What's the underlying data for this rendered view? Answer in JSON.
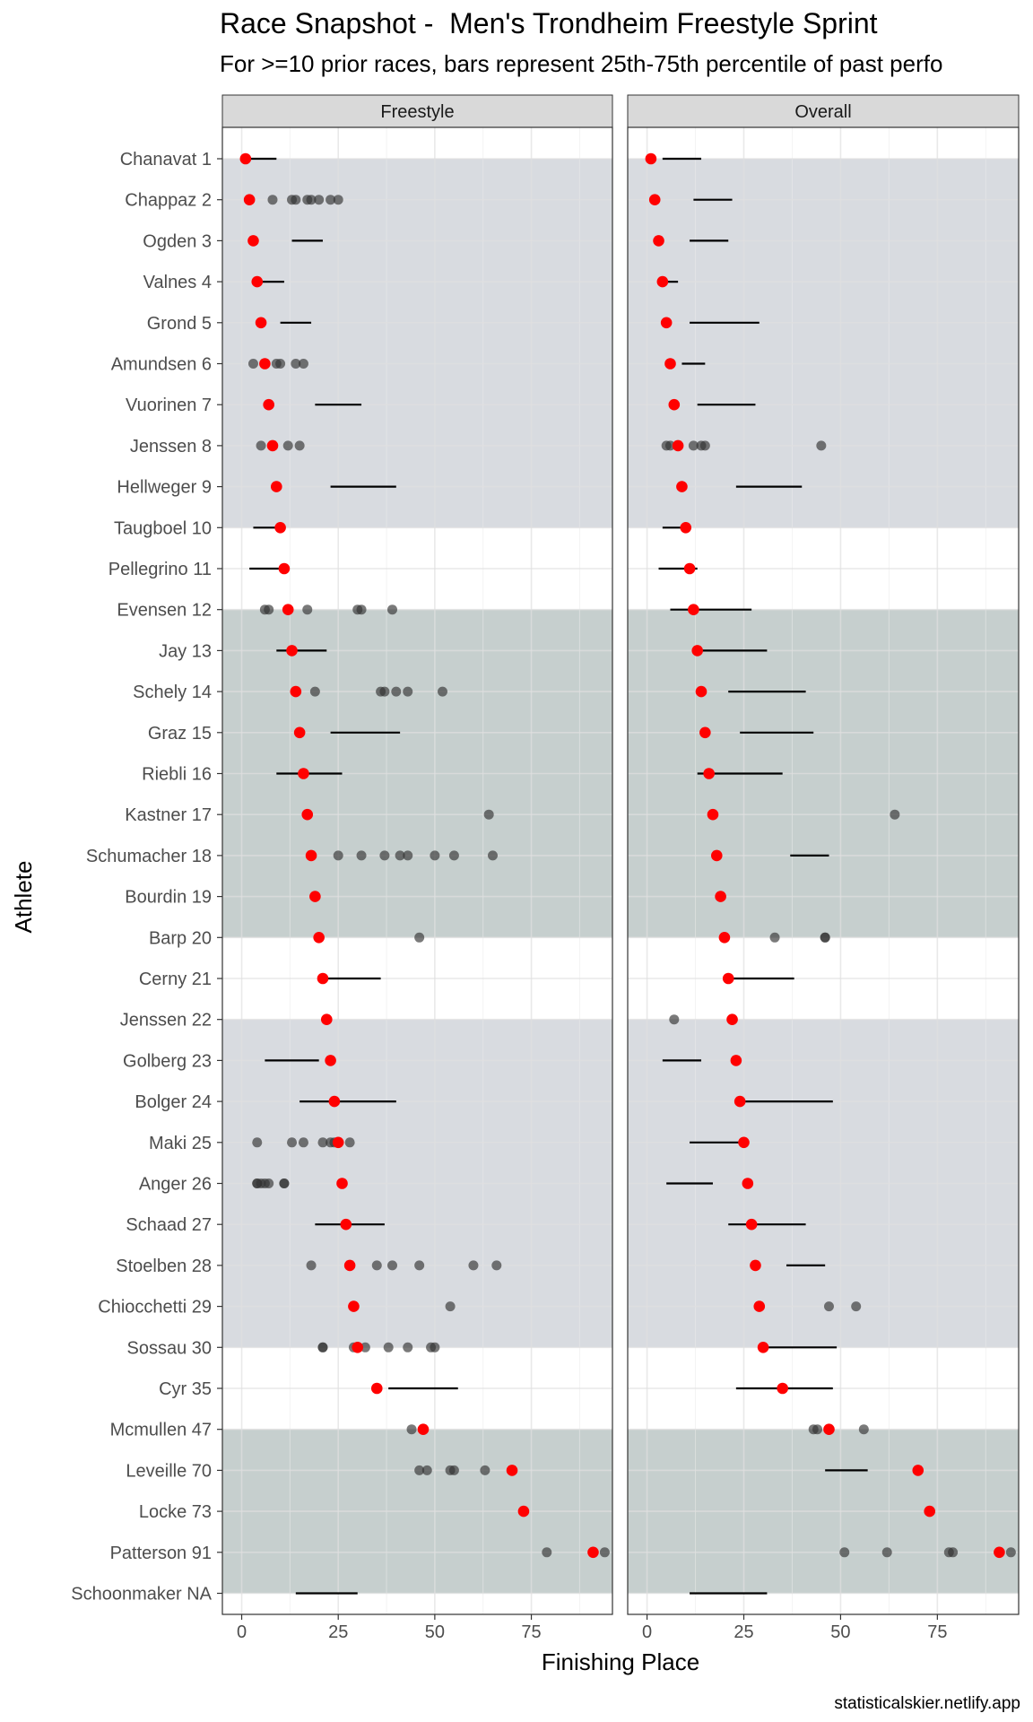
{
  "header": {
    "title": "Race Snapshot -  Men's Trondheim Freestyle Sprint",
    "subtitle": "For >=10 prior races, bars represent 25th-75th percentile of past perfo"
  },
  "caption": "statisticalskier.netlify.app",
  "colors": {
    "panel_band_light": "#d8dbe0",
    "panel_band_dark": "#c6cfce",
    "strip_fill": "#d9d9d9",
    "current_point": "#ff0000",
    "past_point": "#333333",
    "bar": "#000000"
  },
  "chart_data": {
    "type": "scatter",
    "xlabel": "Finishing Place",
    "ylabel": "Athlete",
    "xlim": [
      -5,
      96
    ],
    "x_ticks": [
      0,
      25,
      50,
      75
    ],
    "grid": true,
    "facets": [
      "Freestyle",
      "Overall"
    ],
    "bands": [
      {
        "from_row": 1,
        "to_row": 10,
        "shade": "light"
      },
      {
        "from_row": 12,
        "to_row": 20,
        "shade": "dark"
      },
      {
        "from_row": 22,
        "to_row": 30,
        "shade": "light"
      },
      {
        "from_row": 32,
        "to_row": 36,
        "shade": "dark"
      }
    ],
    "athletes": [
      {
        "label": "Chanavat 1",
        "current": 1,
        "freestyle": {
          "bar": [
            2,
            9
          ],
          "points": []
        },
        "overall": {
          "bar": [
            4,
            14
          ],
          "points": []
        }
      },
      {
        "label": "Chappaz 2",
        "current": 2,
        "freestyle": {
          "bar": null,
          "points": [
            8,
            13,
            14,
            17,
            18,
            20,
            23,
            25
          ]
        },
        "overall": {
          "bar": [
            12,
            22
          ],
          "points": []
        }
      },
      {
        "label": "Ogden 3",
        "current": 3,
        "freestyle": {
          "bar": [
            13,
            21
          ],
          "points": []
        },
        "overall": {
          "bar": [
            11,
            21
          ],
          "points": []
        }
      },
      {
        "label": "Valnes 4",
        "current": 4,
        "freestyle": {
          "bar": [
            5,
            11
          ],
          "points": []
        },
        "overall": {
          "bar": [
            3,
            8
          ],
          "points": []
        }
      },
      {
        "label": "Grond 5",
        "current": 5,
        "freestyle": {
          "bar": [
            10,
            18
          ],
          "points": []
        },
        "overall": {
          "bar": [
            11,
            29
          ],
          "points": []
        }
      },
      {
        "label": "Amundsen 6",
        "current": 6,
        "freestyle": {
          "bar": null,
          "points": [
            3,
            9,
            10,
            14,
            16
          ]
        },
        "overall": {
          "bar": [
            9,
            15
          ],
          "points": []
        }
      },
      {
        "label": "Vuorinen 7",
        "current": 7,
        "freestyle": {
          "bar": [
            19,
            31
          ],
          "points": []
        },
        "overall": {
          "bar": [
            13,
            28
          ],
          "points": []
        }
      },
      {
        "label": "Jenssen 8",
        "current": 8,
        "freestyle": {
          "bar": null,
          "points": [
            5,
            12,
            15
          ]
        },
        "overall": {
          "bar": null,
          "points": [
            5,
            6,
            12,
            14,
            15,
            45
          ]
        }
      },
      {
        "label": "Hellweger 9",
        "current": 9,
        "freestyle": {
          "bar": [
            23,
            40
          ],
          "points": []
        },
        "overall": {
          "bar": [
            23,
            40
          ],
          "points": []
        }
      },
      {
        "label": "Taugboel 10",
        "current": 10,
        "freestyle": {
          "bar": [
            3,
            10
          ],
          "points": []
        },
        "overall": {
          "bar": [
            4,
            10
          ],
          "points": []
        }
      },
      {
        "label": "Pellegrino 11",
        "current": 11,
        "freestyle": {
          "bar": [
            2,
            11
          ],
          "points": []
        },
        "overall": {
          "bar": [
            3,
            13
          ],
          "points": []
        }
      },
      {
        "label": "Evensen 12",
        "current": 12,
        "freestyle": {
          "bar": null,
          "points": [
            6,
            7,
            17,
            30,
            31,
            39
          ]
        },
        "overall": {
          "bar": [
            6,
            27
          ],
          "points": []
        }
      },
      {
        "label": "Jay 13",
        "current": 13,
        "freestyle": {
          "bar": [
            9,
            22
          ],
          "points": []
        },
        "overall": {
          "bar": [
            13,
            31
          ],
          "points": []
        }
      },
      {
        "label": "Schely 14",
        "current": 14,
        "freestyle": {
          "bar": null,
          "points": [
            19,
            36,
            37,
            40,
            43,
            52
          ]
        },
        "overall": {
          "bar": [
            21,
            41
          ],
          "points": []
        }
      },
      {
        "label": "Graz 15",
        "current": 15,
        "freestyle": {
          "bar": [
            23,
            41
          ],
          "points": []
        },
        "overall": {
          "bar": [
            24,
            43
          ],
          "points": []
        }
      },
      {
        "label": "Riebli 16",
        "current": 16,
        "freestyle": {
          "bar": [
            9,
            26
          ],
          "points": []
        },
        "overall": {
          "bar": [
            13,
            35
          ],
          "points": []
        }
      },
      {
        "label": "Kastner 17",
        "current": 17,
        "freestyle": {
          "bar": null,
          "points": [
            64
          ]
        },
        "overall": {
          "bar": null,
          "points": [
            64
          ]
        }
      },
      {
        "label": "Schumacher 18",
        "current": 18,
        "freestyle": {
          "bar": null,
          "points": [
            25,
            31,
            37,
            41,
            43,
            50,
            55,
            65
          ]
        },
        "overall": {
          "bar": [
            37,
            47
          ],
          "points": []
        }
      },
      {
        "label": "Bourdin 19",
        "current": 19,
        "freestyle": {
          "bar": null,
          "points": []
        },
        "overall": {
          "bar": null,
          "points": []
        }
      },
      {
        "label": "Barp 20",
        "current": 20,
        "freestyle": {
          "bar": null,
          "points": [
            46
          ]
        },
        "overall": {
          "bar": null,
          "points": [
            33,
            46,
            46
          ]
        }
      },
      {
        "label": "Cerny 21",
        "current": 21,
        "freestyle": {
          "bar": [
            21,
            36
          ],
          "points": []
        },
        "overall": {
          "bar": [
            21,
            38
          ],
          "points": []
        }
      },
      {
        "label": "Jenssen 22",
        "current": 22,
        "freestyle": {
          "bar": null,
          "points": []
        },
        "overall": {
          "bar": null,
          "points": [
            7
          ]
        }
      },
      {
        "label": "Golberg 23",
        "current": 23,
        "freestyle": {
          "bar": [
            6,
            20
          ],
          "points": []
        },
        "overall": {
          "bar": [
            4,
            14
          ],
          "points": []
        }
      },
      {
        "label": "Bolger 24",
        "current": 24,
        "freestyle": {
          "bar": [
            15,
            40
          ],
          "points": []
        },
        "overall": {
          "bar": [
            24,
            48
          ],
          "points": []
        }
      },
      {
        "label": "Maki 25",
        "current": 25,
        "freestyle": {
          "bar": null,
          "points": [
            4,
            13,
            16,
            21,
            23,
            24,
            25,
            28
          ]
        },
        "overall": {
          "bar": [
            11,
            25
          ],
          "points": []
        }
      },
      {
        "label": "Anger 26",
        "current": 26,
        "freestyle": {
          "bar": null,
          "points": [
            4,
            4,
            5,
            6,
            7,
            11,
            11
          ]
        },
        "overall": {
          "bar": [
            5,
            17
          ],
          "points": []
        }
      },
      {
        "label": "Schaad 27",
        "current": 27,
        "freestyle": {
          "bar": [
            19,
            37
          ],
          "points": []
        },
        "overall": {
          "bar": [
            21,
            41
          ],
          "points": []
        }
      },
      {
        "label": "Stoelben 28",
        "current": 28,
        "freestyle": {
          "bar": null,
          "points": [
            18,
            35,
            39,
            46,
            60,
            66
          ]
        },
        "overall": {
          "bar": [
            36,
            46
          ],
          "points": []
        }
      },
      {
        "label": "Chiocchetti 29",
        "current": 29,
        "freestyle": {
          "bar": null,
          "points": [
            54
          ]
        },
        "overall": {
          "bar": null,
          "points": [
            47,
            54
          ]
        }
      },
      {
        "label": "Sossau 30",
        "current": 30,
        "freestyle": {
          "bar": null,
          "points": [
            21,
            21,
            29,
            32,
            38,
            43,
            49,
            50
          ]
        },
        "overall": {
          "bar": [
            30,
            49
          ],
          "points": []
        }
      },
      {
        "label": "Cyr 35",
        "current": 35,
        "freestyle": {
          "bar": [
            38,
            56
          ],
          "points": []
        },
        "overall": {
          "bar": [
            23,
            48
          ],
          "points": []
        }
      },
      {
        "label": "Mcmullen 47",
        "current": 47,
        "freestyle": {
          "bar": null,
          "points": [
            44
          ]
        },
        "overall": {
          "bar": null,
          "points": [
            43,
            44,
            56
          ]
        }
      },
      {
        "label": "Leveille 70",
        "current": 70,
        "freestyle": {
          "bar": null,
          "points": [
            46,
            48,
            54,
            55,
            63
          ]
        },
        "overall": {
          "bar": [
            46,
            57
          ],
          "points": []
        }
      },
      {
        "label": "Locke 73",
        "current": 73,
        "freestyle": {
          "bar": null,
          "points": []
        },
        "overall": {
          "bar": null,
          "points": []
        }
      },
      {
        "label": "Patterson 91",
        "current": 91,
        "freestyle": {
          "bar": null,
          "points": [
            79,
            94
          ]
        },
        "overall": {
          "bar": null,
          "points": [
            51,
            62,
            78,
            79,
            94
          ]
        }
      },
      {
        "label": "Schoonmaker NA",
        "current": null,
        "freestyle": {
          "bar": [
            14,
            30
          ],
          "points": []
        },
        "overall": {
          "bar": [
            11,
            31
          ],
          "points": []
        }
      }
    ]
  }
}
